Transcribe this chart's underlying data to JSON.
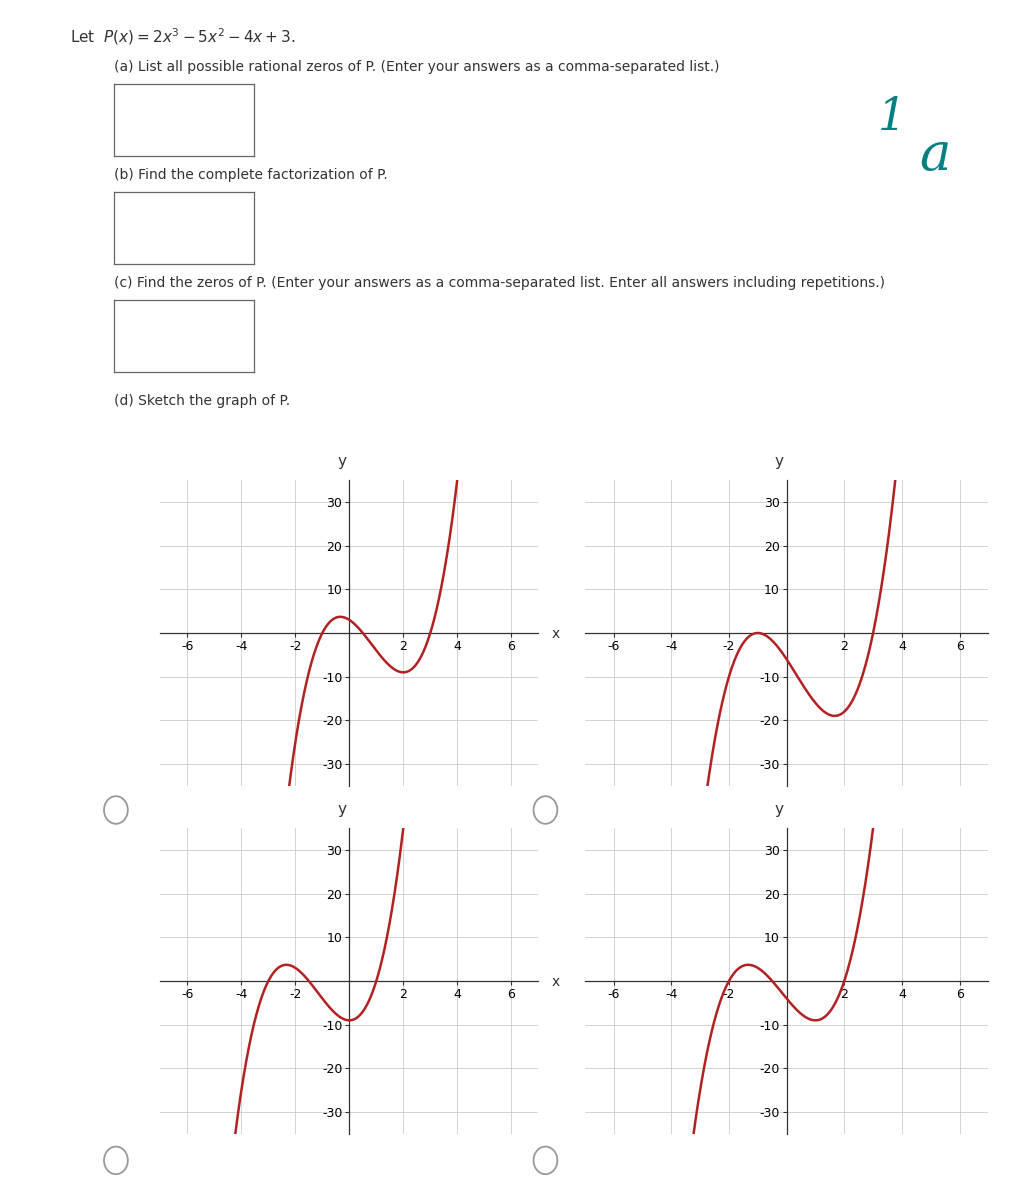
{
  "part_a_text": "(a) List all possible rational zeros of P. (Enter your answers as a comma-separated list.)",
  "part_b_text": "(b) Find the complete factorization of P.",
  "part_c_text": "(c) Find the zeros of P. (Enter your answers as a comma-separated list. Enter all answers including repetitions.)",
  "part_d_text": "(d) Sketch the graph of P.",
  "curve_color": "#b22222",
  "curve_lw": 1.8,
  "grid_color": "#cccccc",
  "bg_color": "#ffffff",
  "text_color": "#333333",
  "annotation_color": "#008080",
  "radio_color": "#999999",
  "xlim": [
    -7,
    7
  ],
  "ylim": [
    -35,
    35
  ],
  "xticks": [
    -6,
    -4,
    -2,
    2,
    4,
    6
  ],
  "yticks": [
    -30,
    -20,
    -10,
    10,
    20,
    30
  ]
}
